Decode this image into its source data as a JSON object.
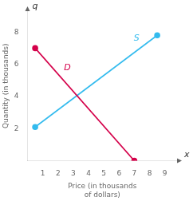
{
  "chart_data": {
    "type": "line",
    "xlabel": "Price (in thousands\nof dollars)",
    "ylabel": "Quantity (in thousands)",
    "xlim": [
      0,
      9.8
    ],
    "ylim": [
      0,
      9.3
    ],
    "xticks": [
      1,
      2,
      3,
      4,
      5,
      6,
      7,
      8,
      9
    ],
    "yticks": [
      2,
      4,
      6,
      8
    ],
    "grid": false,
    "series": [
      {
        "name": "D",
        "color": "#d4004a",
        "x": [
          0.5,
          7.0
        ],
        "values": [
          7.0,
          0.0
        ],
        "marker": "circle"
      },
      {
        "name": "S",
        "color": "#33bbee",
        "x": [
          0.5,
          8.5
        ],
        "values": [
          2.1,
          7.8
        ],
        "marker": "circle"
      }
    ],
    "annotations": [
      {
        "text": "q",
        "axis": "y"
      },
      {
        "text": "x",
        "axis": "x"
      }
    ]
  }
}
